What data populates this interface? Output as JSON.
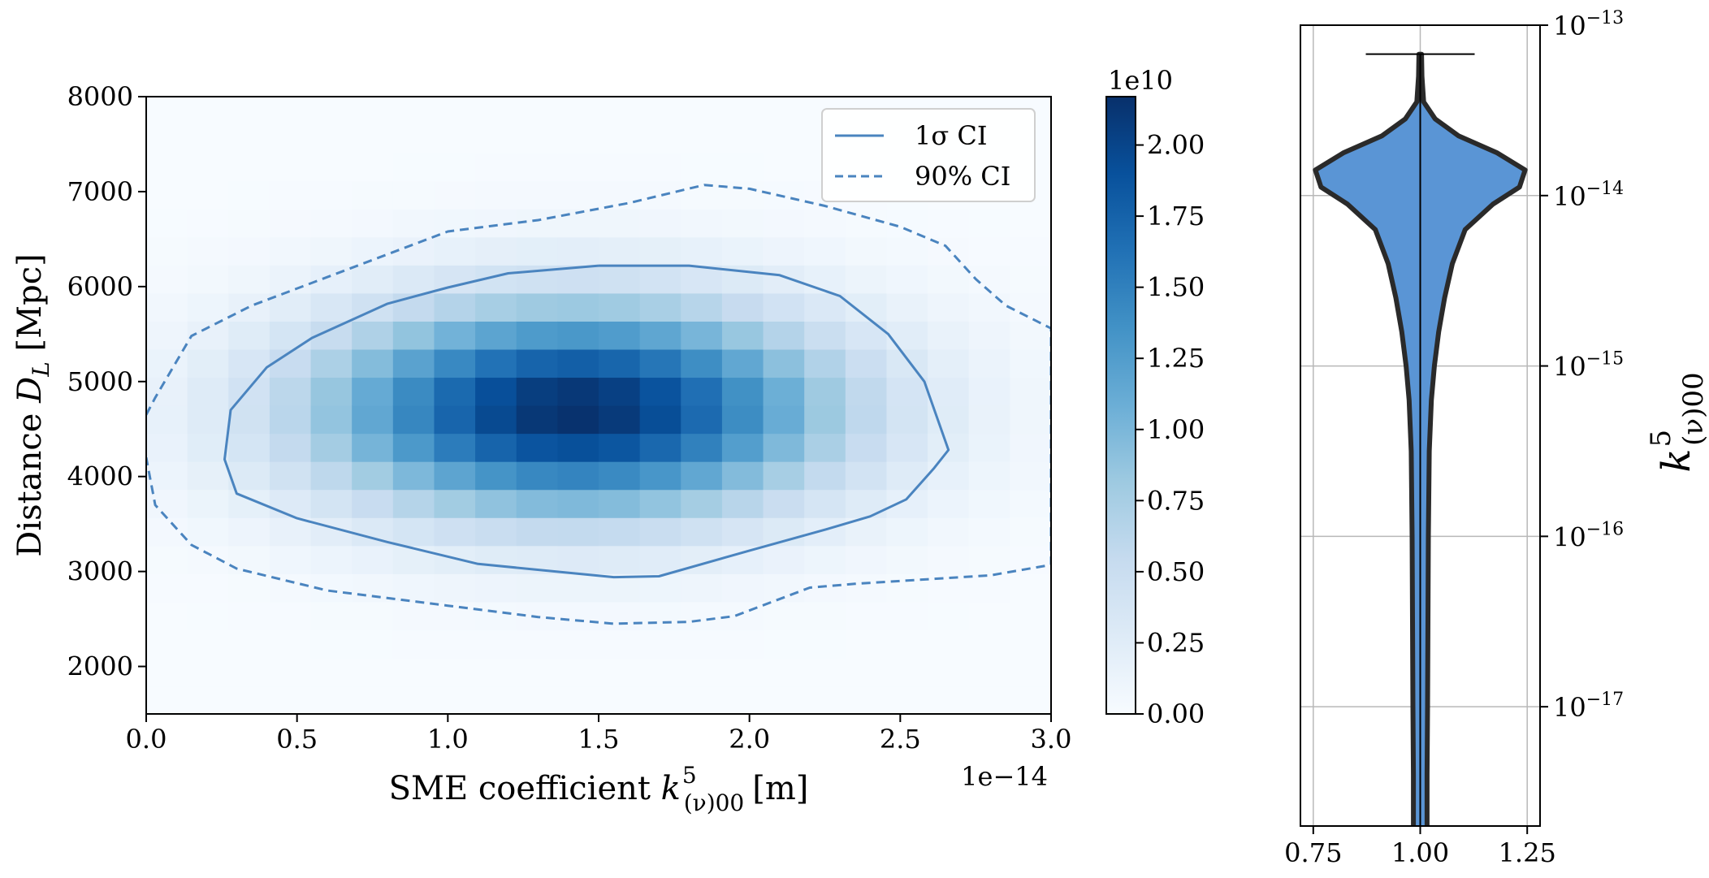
{
  "chart_data": [
    {
      "type": "heatmap",
      "title": "",
      "xlabel": "SME coefficient",
      "xlabel_symbol": {
        "base": "k",
        "sup": "5",
        "sub": "(ν)00"
      },
      "xlabel_unit": "[m]",
      "x_offset_label": "1e−14",
      "ylabel": "Distance",
      "ylabel_symbol": {
        "base": "D",
        "sub": "L"
      },
      "ylabel_unit": "[Mpc]",
      "xlim": [
        0.0,
        3.0
      ],
      "ylim": [
        1500,
        8000
      ],
      "xticks": [
        0.0,
        0.5,
        1.0,
        1.5,
        2.0,
        2.5,
        3.0
      ],
      "xtick_labels": [
        "0.0",
        "0.5",
        "1.0",
        "1.5",
        "2.0",
        "2.5",
        "3.0"
      ],
      "yticks": [
        2000,
        3000,
        4000,
        5000,
        6000,
        7000,
        8000
      ],
      "ytick_labels": [
        "2000",
        "3000",
        "4000",
        "5000",
        "6000",
        "7000",
        "8000"
      ],
      "grid": false,
      "density": {
        "x_bins": 22,
        "y_bins": 22,
        "peak_value": 21700000000.0,
        "peak_x": 1.42,
        "peak_y": 4700,
        "sigma_x": 0.6,
        "sigma_y": 780
      },
      "colorbar": {
        "offset_label": "1e10",
        "range": [
          0.0,
          2.17
        ],
        "ticks": [
          0.0,
          0.25,
          0.5,
          0.75,
          1.0,
          1.25,
          1.5,
          1.75,
          2.0
        ],
        "tick_labels": [
          "0.00",
          "0.25",
          "0.50",
          "0.75",
          "1.00",
          "1.25",
          "1.50",
          "1.75",
          "2.00"
        ],
        "colormap": "Blues"
      },
      "contours": [
        {
          "name": "1σ CI",
          "style": "solid",
          "color": "#4a84bf",
          "x": [
            1.5,
            1.8,
            2.1,
            2.3,
            2.46,
            2.58,
            2.66,
            2.61,
            2.52,
            2.4,
            2.25,
            2.0,
            1.7,
            1.55,
            1.1,
            0.8,
            0.5,
            0.3,
            0.26,
            0.28,
            0.4,
            0.55,
            0.8,
            1.0,
            1.2,
            1.5
          ],
          "y": [
            6220,
            6220,
            6120,
            5900,
            5500,
            5000,
            4280,
            4080,
            3760,
            3580,
            3440,
            3220,
            2950,
            2940,
            3080,
            3310,
            3560,
            3820,
            4180,
            4700,
            5150,
            5460,
            5820,
            5990,
            6140,
            6220
          ]
        },
        {
          "name": "90% CI",
          "style": "dashed",
          "color": "#4a84bf",
          "x": [
            0.0,
            0.03,
            0.15,
            0.35,
            0.6,
            1.0,
            1.3,
            1.6,
            1.85,
            2.0,
            2.25,
            2.5,
            2.65,
            2.75,
            2.85,
            3.0,
            3.0,
            2.8,
            2.5,
            2.35,
            2.2,
            1.95,
            1.8,
            1.55,
            1.3,
            1.0,
            0.6,
            0.3,
            0.15,
            0.03,
            0.0
          ],
          "y": [
            4650,
            4830,
            5480,
            5800,
            6100,
            6580,
            6700,
            6880,
            7070,
            7030,
            6850,
            6630,
            6430,
            6080,
            5800,
            5560,
            3070,
            2960,
            2900,
            2870,
            2830,
            2530,
            2470,
            2450,
            2520,
            2640,
            2800,
            3030,
            3280,
            3700,
            4200
          ]
        }
      ],
      "legend": {
        "placement": "top-right",
        "entries": [
          {
            "label": "1σ CI",
            "style": "solid"
          },
          {
            "label": "90% CI",
            "style": "dashed"
          }
        ]
      }
    },
    {
      "type": "violin",
      "title": "",
      "xlabel": "",
      "ylabel_symbol": {
        "base": "k",
        "sup": "5",
        "sub": "(ν)00"
      },
      "yscale": "log",
      "xlim": [
        0.72,
        1.28
      ],
      "ylim_exponent": [
        -17.7,
        -13.0
      ],
      "xticks": [
        0.75,
        1.0,
        1.25
      ],
      "xtick_labels": [
        "0.75",
        "1.00",
        "1.25"
      ],
      "y_tick_exponents": [
        -13,
        -14,
        -15,
        -16,
        -17
      ],
      "y_tick_labels": [
        "10",
        "10",
        "10",
        "10",
        "10"
      ],
      "y_tick_label_exponents": [
        "−13",
        "−14",
        "−15",
        "−16",
        "−17"
      ],
      "grid": true,
      "position": 1.0,
      "fill_color": "#5a95d5",
      "edge_color": "#2a2a2a",
      "max_whisker_exponent": -13.17,
      "profile": [
        {
          "log_k": -13.17,
          "half_width": 0.003
        },
        {
          "log_k": -13.3,
          "half_width": 0.004
        },
        {
          "log_k": -13.45,
          "half_width": 0.008
        },
        {
          "log_k": -13.55,
          "half_width": 0.035
        },
        {
          "log_k": -13.65,
          "half_width": 0.09
        },
        {
          "log_k": -13.75,
          "half_width": 0.18
        },
        {
          "log_k": -13.85,
          "half_width": 0.245
        },
        {
          "log_k": -13.95,
          "half_width": 0.232
        },
        {
          "log_k": -14.05,
          "half_width": 0.17
        },
        {
          "log_k": -14.2,
          "half_width": 0.105
        },
        {
          "log_k": -14.4,
          "half_width": 0.075
        },
        {
          "log_k": -14.6,
          "half_width": 0.057
        },
        {
          "log_k": -14.8,
          "half_width": 0.043
        },
        {
          "log_k": -15.0,
          "half_width": 0.033
        },
        {
          "log_k": -15.2,
          "half_width": 0.026
        },
        {
          "log_k": -15.5,
          "half_width": 0.021
        },
        {
          "log_k": -16.0,
          "half_width": 0.019
        },
        {
          "log_k": -16.5,
          "half_width": 0.018
        },
        {
          "log_k": -17.0,
          "half_width": 0.017
        },
        {
          "log_k": -17.4,
          "half_width": 0.016
        },
        {
          "log_k": -17.7,
          "half_width": 0.016
        }
      ]
    }
  ]
}
